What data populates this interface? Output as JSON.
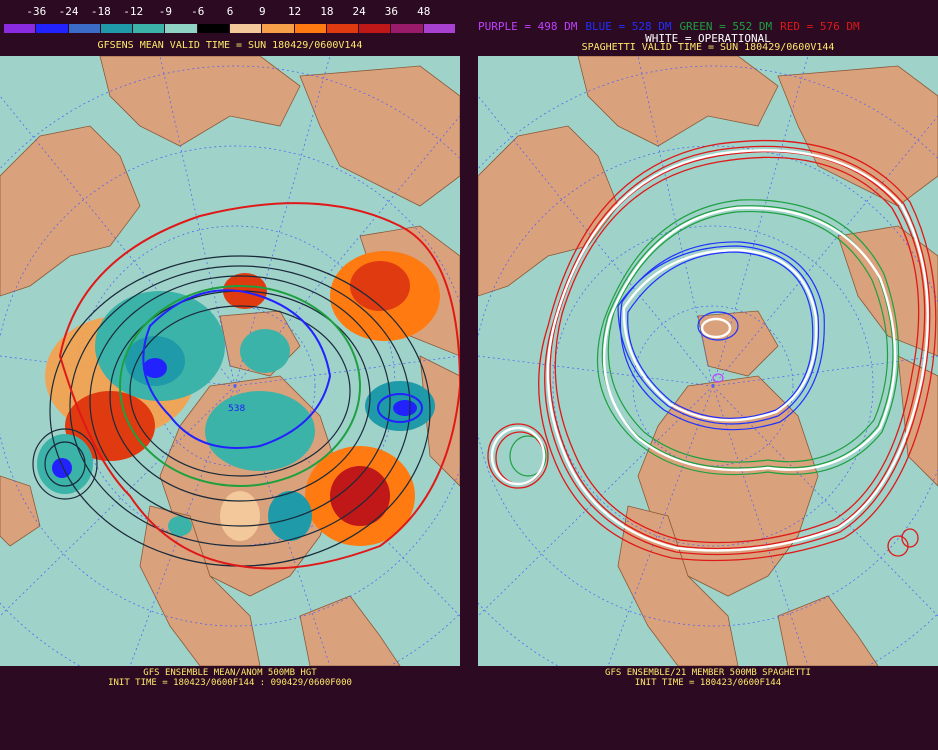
{
  "colorbar": {
    "ticks": [
      "-36",
      "-24",
      "-18",
      "-12",
      "-9",
      "-6",
      "6",
      "9",
      "12",
      "18",
      "24",
      "36",
      "48"
    ],
    "colors": [
      "#8a2be2",
      "#2222ff",
      "#3a6cc8",
      "#1f9aa8",
      "#3cb3a8",
      "#8fd3c4",
      "#000000",
      "#f3c89a",
      "#f7a04a",
      "#ff7a10",
      "#e03a10",
      "#c01818",
      "#9b1b6b",
      "#a840d0"
    ]
  },
  "left_panel": {
    "title": "GFSENS MEAN VALID TIME = SUN 180429/0600V144",
    "contour_label": "538",
    "footer_line1": "GFS ENSEMBLE MEAN/ANOM 500MB HGT",
    "footer_line2": "INIT TIME = 180423/0600F144 : 090429/0600F000"
  },
  "right_panel": {
    "legend": [
      {
        "text": "PURPLE = 498 DM",
        "color": "#c040ff"
      },
      {
        "text": "BLUE = 528 DM",
        "color": "#2030ff"
      },
      {
        "text": "GREEN = 552 DM",
        "color": "#1fa040"
      },
      {
        "text": "RED = 576 DM",
        "color": "#e01818"
      }
    ],
    "white_legend": "WHITE = OPERATIONAL",
    "title": "SPAGHETTI VALID TIME = SUN 180429/0600V144",
    "footer_line1": "GFS ENSEMBLE/21 MEMBER 500MB SPAGHETTI",
    "footer_line2": "INIT TIME = 180423/0600F144"
  },
  "colors": {
    "ocean": "#9fd2c9",
    "land": "#d9a27c",
    "grid": "#4a5cff",
    "background": "#2b0a22",
    "text_yellow": "#ffe86a"
  }
}
